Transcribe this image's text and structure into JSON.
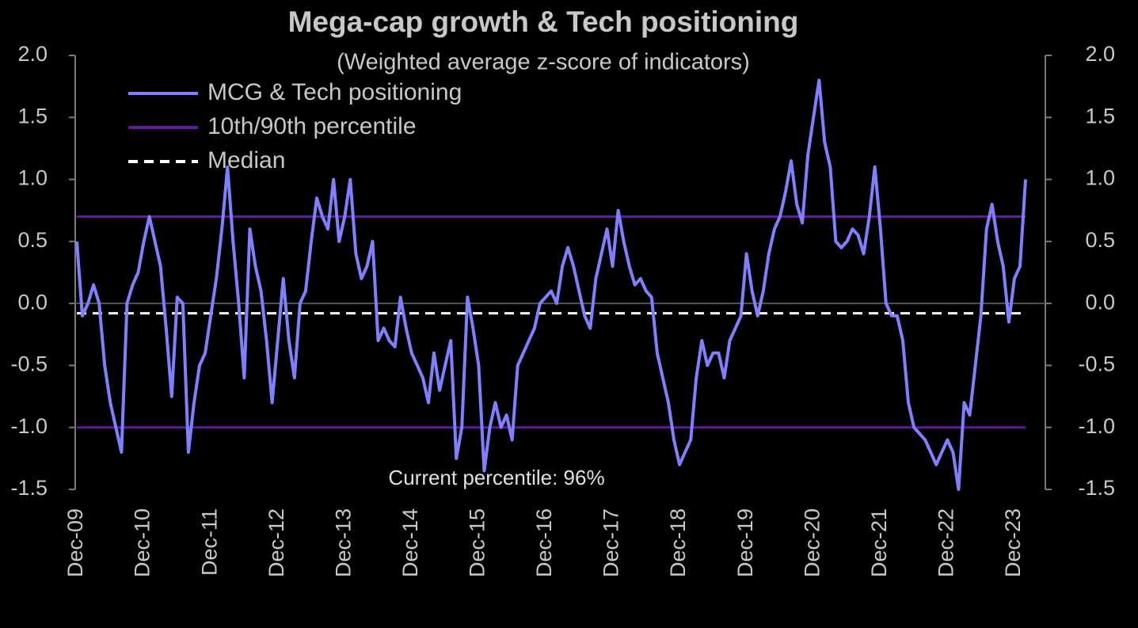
{
  "chart_data": {
    "type": "line",
    "title": "Mega-cap growth & Tech positioning",
    "subtitle": "(Weighted average z-score of indicators)",
    "annotation": "Current percentile: 96%",
    "x": [
      "2009-12",
      "2010-01",
      "2010-02",
      "2010-03",
      "2010-04",
      "2010-05",
      "2010-06",
      "2010-07",
      "2010-08",
      "2010-09",
      "2010-10",
      "2010-11",
      "2010-12",
      "2011-01",
      "2011-02",
      "2011-03",
      "2011-04",
      "2011-05",
      "2011-06",
      "2011-07",
      "2011-08",
      "2011-09",
      "2011-10",
      "2011-11",
      "2011-12",
      "2012-01",
      "2012-02",
      "2012-03",
      "2012-04",
      "2012-05",
      "2012-06",
      "2012-07",
      "2012-08",
      "2012-09",
      "2012-10",
      "2012-11",
      "2012-12",
      "2013-01",
      "2013-02",
      "2013-03",
      "2013-04",
      "2013-05",
      "2013-06",
      "2013-07",
      "2013-08",
      "2013-09",
      "2013-10",
      "2013-11",
      "2013-12",
      "2014-01",
      "2014-02",
      "2014-03",
      "2014-04",
      "2014-05",
      "2014-06",
      "2014-07",
      "2014-08",
      "2014-09",
      "2014-10",
      "2014-11",
      "2014-12",
      "2015-01",
      "2015-02",
      "2015-03",
      "2015-04",
      "2015-05",
      "2015-06",
      "2015-07",
      "2015-08",
      "2015-09",
      "2015-10",
      "2015-11",
      "2015-12",
      "2016-01",
      "2016-02",
      "2016-03",
      "2016-04",
      "2016-05",
      "2016-06",
      "2016-07",
      "2016-08",
      "2016-09",
      "2016-10",
      "2016-11",
      "2016-12",
      "2017-01",
      "2017-02",
      "2017-03",
      "2017-04",
      "2017-05",
      "2017-06",
      "2017-07",
      "2017-08",
      "2017-09",
      "2017-10",
      "2017-11",
      "2017-12",
      "2018-01",
      "2018-02",
      "2018-03",
      "2018-04",
      "2018-05",
      "2018-06",
      "2018-07",
      "2018-08",
      "2018-09",
      "2018-10",
      "2018-11",
      "2018-12",
      "2019-01",
      "2019-02",
      "2019-03",
      "2019-04",
      "2019-05",
      "2019-06",
      "2019-07",
      "2019-08",
      "2019-09",
      "2019-10",
      "2019-11",
      "2019-12",
      "2020-01",
      "2020-02",
      "2020-03",
      "2020-04",
      "2020-05",
      "2020-06",
      "2020-07",
      "2020-08",
      "2020-09",
      "2020-10",
      "2020-11",
      "2020-12",
      "2021-01",
      "2021-02",
      "2021-03",
      "2021-04",
      "2021-05",
      "2021-06",
      "2021-07",
      "2021-08",
      "2021-09",
      "2021-10",
      "2021-11",
      "2021-12",
      "2022-01",
      "2022-02",
      "2022-03",
      "2022-04",
      "2022-05",
      "2022-06",
      "2022-07",
      "2022-08",
      "2022-09",
      "2022-10",
      "2022-11",
      "2022-12",
      "2023-01",
      "2023-02",
      "2023-03",
      "2023-04",
      "2023-05",
      "2023-06",
      "2023-07",
      "2023-08",
      "2023-09",
      "2023-10",
      "2023-11",
      "2023-12",
      "2024-01",
      "2024-02"
    ],
    "series": [
      {
        "name": "MCG & Tech positioning",
        "color": "#8080ff",
        "values": [
          0.5,
          -0.1,
          0.0,
          0.15,
          0.0,
          -0.5,
          -0.8,
          -1.0,
          -1.2,
          0.0,
          0.15,
          0.25,
          0.5,
          0.7,
          0.5,
          0.3,
          -0.2,
          -0.75,
          0.05,
          0.0,
          -1.2,
          -0.8,
          -0.5,
          -0.4,
          -0.1,
          0.2,
          0.6,
          1.1,
          0.5,
          0.0,
          -0.6,
          0.6,
          0.3,
          0.1,
          -0.3,
          -0.8,
          -0.3,
          0.2,
          -0.3,
          -0.6,
          0.0,
          0.1,
          0.5,
          0.85,
          0.7,
          0.6,
          1.0,
          0.5,
          0.7,
          1.0,
          0.4,
          0.2,
          0.3,
          0.5,
          -0.3,
          -0.2,
          -0.3,
          -0.35,
          0.05,
          -0.2,
          -0.4,
          -0.5,
          -0.6,
          -0.8,
          -0.4,
          -0.7,
          -0.5,
          -0.3,
          -1.25,
          -1.0,
          0.05,
          -0.2,
          -0.5,
          -1.35,
          -1.0,
          -0.8,
          -1.0,
          -0.9,
          -1.1,
          -0.5,
          -0.4,
          -0.3,
          -0.2,
          0.0,
          0.05,
          0.1,
          0.0,
          0.3,
          0.45,
          0.3,
          0.1,
          -0.1,
          -0.2,
          0.2,
          0.4,
          0.6,
          0.3,
          0.75,
          0.5,
          0.3,
          0.15,
          0.2,
          0.1,
          0.05,
          -0.4,
          -0.6,
          -0.8,
          -1.1,
          -1.3,
          -1.2,
          -1.1,
          -0.6,
          -0.3,
          -0.5,
          -0.4,
          -0.4,
          -0.6,
          -0.3,
          -0.2,
          -0.1,
          0.4,
          0.1,
          -0.1,
          0.1,
          0.4,
          0.6,
          0.7,
          0.9,
          1.15,
          0.8,
          0.65,
          1.2,
          1.5,
          1.8,
          1.3,
          1.1,
          0.5,
          0.45,
          0.5,
          0.6,
          0.55,
          0.4,
          0.7,
          1.1,
          0.6,
          0.0,
          -0.1,
          -0.1,
          -0.3,
          -0.8,
          -1.0,
          -1.05,
          -1.1,
          -1.2,
          -1.3,
          -1.2,
          -1.1,
          -1.2,
          -1.5,
          -0.8,
          -0.9,
          -0.5,
          -0.1,
          0.6,
          0.8,
          0.5,
          0.3,
          -0.15,
          0.2,
          0.3,
          1.0
        ]
      }
    ],
    "reference_lines": [
      {
        "name": "10th/90th percentile",
        "color": "#5e1a9a",
        "values": [
          0.7,
          -1.0
        ],
        "dashed": false
      },
      {
        "name": "Median",
        "color": "#ffffff",
        "values": [
          -0.08
        ],
        "dashed": true
      }
    ],
    "xlim": [
      "2009-12",
      "2024-02"
    ],
    "xticks": [
      {
        "value": "2009-12",
        "label": "Dec-09"
      },
      {
        "value": "2010-12",
        "label": "Dec-10"
      },
      {
        "value": "2011-12",
        "label": "Dec-11"
      },
      {
        "value": "2012-12",
        "label": "Dec-12"
      },
      {
        "value": "2013-12",
        "label": "Dec-13"
      },
      {
        "value": "2014-12",
        "label": "Dec-14"
      },
      {
        "value": "2015-12",
        "label": "Dec-15"
      },
      {
        "value": "2016-12",
        "label": "Dec-16"
      },
      {
        "value": "2017-12",
        "label": "Dec-17"
      },
      {
        "value": "2018-12",
        "label": "Dec-18"
      },
      {
        "value": "2019-12",
        "label": "Dec-19"
      },
      {
        "value": "2020-12",
        "label": "Dec-20"
      },
      {
        "value": "2021-12",
        "label": "Dec-21"
      },
      {
        "value": "2022-12",
        "label": "Dec-22"
      },
      {
        "value": "2023-12",
        "label": "Dec-23"
      }
    ],
    "ylim": [
      -1.5,
      2.0
    ],
    "yticks": [
      {
        "value": 2.0,
        "label": "2.0"
      },
      {
        "value": 1.5,
        "label": "1.5"
      },
      {
        "value": 1.0,
        "label": "1.0"
      },
      {
        "value": 0.5,
        "label": "0.5"
      },
      {
        "value": 0.0,
        "label": "0.0"
      },
      {
        "value": -0.5,
        "label": "-0.5"
      },
      {
        "value": -1.0,
        "label": "-1.0"
      },
      {
        "value": -1.5,
        "label": "-1.5"
      }
    ],
    "y2lim": [
      -1.5,
      2.0
    ],
    "y2ticks": [
      {
        "value": 2.0,
        "label": "2.0"
      },
      {
        "value": 1.5,
        "label": "1.5"
      },
      {
        "value": 1.0,
        "label": "1.0"
      },
      {
        "value": 0.5,
        "label": "0.5"
      },
      {
        "value": 0.0,
        "label": "0.0"
      },
      {
        "value": -0.5,
        "label": "-0.5"
      },
      {
        "value": -1.0,
        "label": "-1.0"
      },
      {
        "value": -1.5,
        "label": "-1.5"
      }
    ],
    "legend": "upper left"
  }
}
